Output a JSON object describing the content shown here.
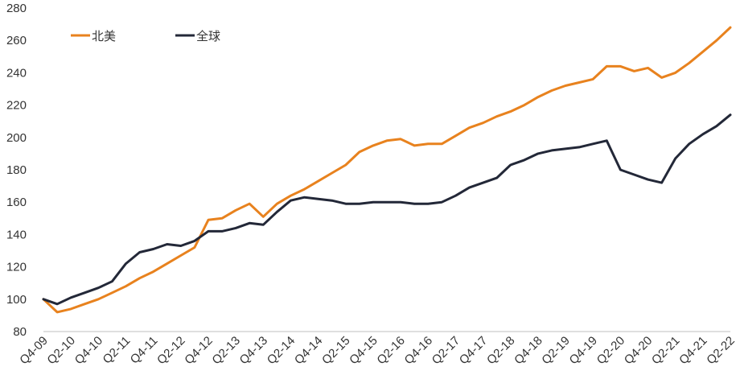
{
  "chart_data": {
    "type": "line",
    "title": "",
    "xlabel": "",
    "ylabel": "",
    "ylim": [
      80,
      280
    ],
    "yticks": [
      80,
      100,
      120,
      140,
      160,
      180,
      200,
      220,
      240,
      260,
      280
    ],
    "grid": false,
    "legend_position": "top-left",
    "x": [
      "Q4-09",
      "Q1-10",
      "Q2-10",
      "Q3-10",
      "Q4-10",
      "Q1-11",
      "Q2-11",
      "Q3-11",
      "Q4-11",
      "Q1-12",
      "Q2-12",
      "Q3-12",
      "Q4-12",
      "Q1-13",
      "Q2-13",
      "Q3-13",
      "Q4-13",
      "Q1-14",
      "Q2-14",
      "Q3-14",
      "Q4-14",
      "Q1-15",
      "Q2-15",
      "Q3-15",
      "Q4-15",
      "Q1-16",
      "Q2-16",
      "Q3-16",
      "Q4-16",
      "Q1-17",
      "Q2-17",
      "Q3-17",
      "Q4-17",
      "Q1-18",
      "Q2-18",
      "Q3-18",
      "Q4-18",
      "Q1-19",
      "Q2-19",
      "Q3-19",
      "Q4-19",
      "Q1-20",
      "Q2-20",
      "Q3-20",
      "Q4-20",
      "Q1-21",
      "Q2-21",
      "Q3-21",
      "Q4-21",
      "Q1-22",
      "Q2-22"
    ],
    "x_tick_labels": [
      "Q4-09",
      "Q2-10",
      "Q4-10",
      "Q2-11",
      "Q4-11",
      "Q2-12",
      "Q4-12",
      "Q2-13",
      "Q4-13",
      "Q2-14",
      "Q4-14",
      "Q2-15",
      "Q4-15",
      "Q2-16",
      "Q4-16",
      "Q2-17",
      "Q4-17",
      "Q2-18",
      "Q4-18",
      "Q2-19",
      "Q4-19",
      "Q2-20",
      "Q4-20",
      "Q2-21",
      "Q4-21",
      "Q2-22"
    ],
    "series": [
      {
        "name": "北美",
        "color": "#E8821E",
        "values": [
          100,
          92,
          94,
          97,
          100,
          104,
          108,
          113,
          117,
          122,
          127,
          132,
          149,
          150,
          155,
          159,
          151,
          159,
          164,
          168,
          173,
          178,
          183,
          191,
          195,
          198,
          199,
          195,
          196,
          196,
          201,
          206,
          209,
          213,
          216,
          220,
          225,
          229,
          232,
          234,
          236,
          244,
          244,
          241,
          243,
          237,
          240,
          246,
          253,
          260,
          268
        ]
      },
      {
        "name": "全球",
        "color": "#232838",
        "values": [
          100,
          97,
          101,
          104,
          107,
          111,
          122,
          129,
          131,
          134,
          133,
          136,
          142,
          142,
          144,
          147,
          146,
          154,
          161,
          163,
          162,
          161,
          159,
          159,
          160,
          160,
          160,
          159,
          159,
          160,
          164,
          169,
          172,
          175,
          183,
          186,
          190,
          192,
          193,
          194,
          196,
          198,
          180,
          177,
          174,
          172,
          187,
          196,
          202,
          207,
          214
        ]
      }
    ]
  }
}
